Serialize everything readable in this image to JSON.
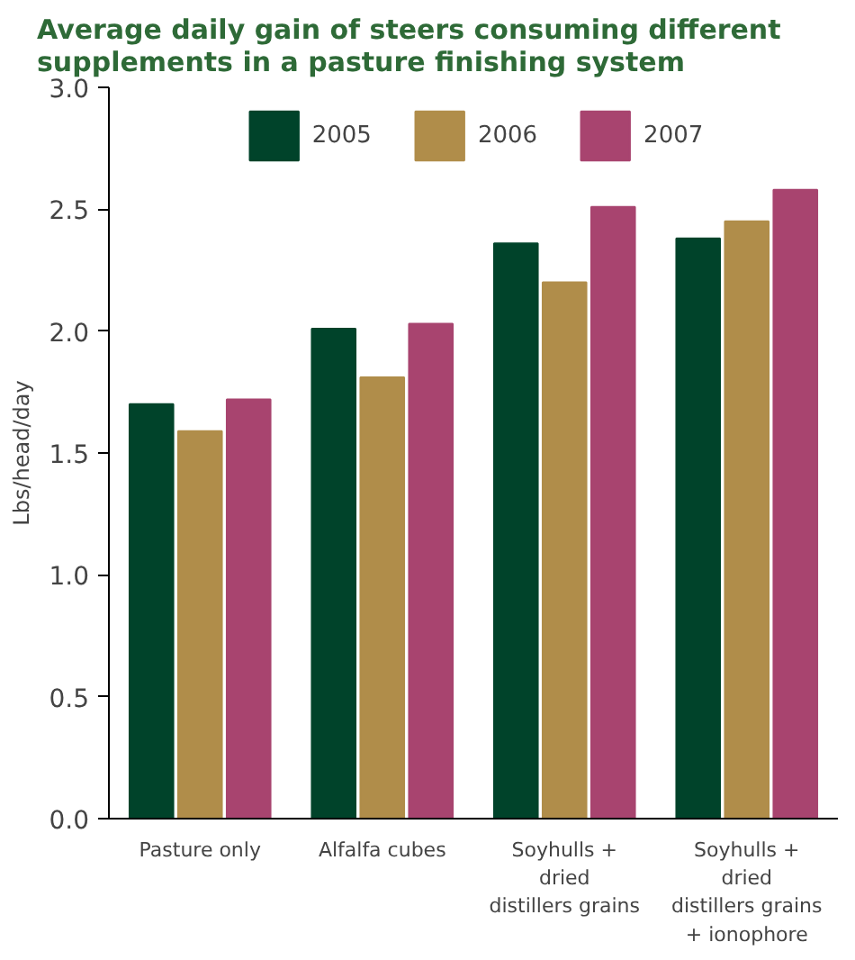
{
  "chart_data": {
    "type": "bar",
    "title": "Average daily gain of steers consuming different\nsupplements in a pasture finishing system",
    "ylabel": "Lbs/head/day",
    "categories": [
      "Pasture only",
      "Alfalfa cubes",
      "Soyhulls +\ndried\ndistillers grains",
      "Soyhulls +\ndried\ndistillers grains\n+ ionophore"
    ],
    "series": [
      {
        "name": "2005",
        "color": "#00432a",
        "values": [
          1.7,
          2.01,
          2.36,
          2.38
        ]
      },
      {
        "name": "2006",
        "color": "#b08d4a",
        "values": [
          1.59,
          1.81,
          2.2,
          2.45
        ]
      },
      {
        "name": "2007",
        "color": "#a8446f",
        "values": [
          1.72,
          2.03,
          2.51,
          2.58
        ]
      }
    ],
    "ylim": [
      0,
      3.0
    ],
    "yticks": [
      {
        "value": 0,
        "label": "0.0"
      },
      {
        "value": 0.5,
        "label": "0.5"
      },
      {
        "value": 1,
        "label": "1.0"
      },
      {
        "value": 1.5,
        "label": "1.5"
      },
      {
        "value": 2,
        "label": "2.0"
      },
      {
        "value": 2.5,
        "label": "2.5"
      },
      {
        "value": 3,
        "label": "3.0"
      }
    ],
    "grid": false,
    "legend": "top"
  }
}
